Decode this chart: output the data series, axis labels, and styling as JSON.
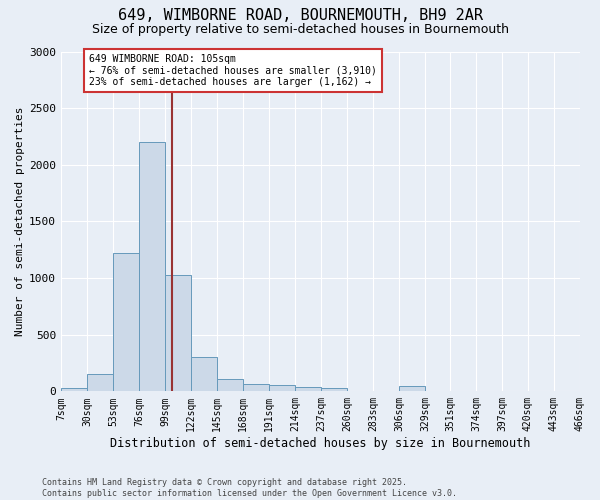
{
  "title": "649, WIMBORNE ROAD, BOURNEMOUTH, BH9 2AR",
  "subtitle": "Size of property relative to semi-detached houses in Bournemouth",
  "xlabel": "Distribution of semi-detached houses by size in Bournemouth",
  "ylabel": "Number of semi-detached properties",
  "footnote": "Contains HM Land Registry data © Crown copyright and database right 2025.\nContains public sector information licensed under the Open Government Licence v3.0.",
  "bin_edges": [
    7,
    30,
    53,
    76,
    99,
    122,
    145,
    168,
    191,
    214,
    237,
    260,
    283,
    306,
    329,
    351,
    374,
    397,
    420,
    443,
    466
  ],
  "bar_heights": [
    30,
    150,
    1220,
    2200,
    1030,
    305,
    105,
    65,
    55,
    40,
    30,
    5,
    5,
    45,
    3,
    2,
    1,
    1,
    0,
    0
  ],
  "bar_color": "#ccd9e8",
  "bar_edgecolor": "#6699bb",
  "bg_color": "#e8eef6",
  "grid_color": "#ffffff",
  "property_size": 105,
  "vline_color": "#993333",
  "annotation_text": "649 WIMBORNE ROAD: 105sqm\n← 76% of semi-detached houses are smaller (3,910)\n23% of semi-detached houses are larger (1,162) →",
  "annotation_box_facecolor": "#ffffff",
  "annotation_border_color": "#cc3333",
  "ylim": [
    0,
    3000
  ],
  "yticks": [
    0,
    500,
    1000,
    1500,
    2000,
    2500,
    3000
  ],
  "title_fontsize": 11,
  "subtitle_fontsize": 9,
  "ylabel_fontsize": 8,
  "xlabel_fontsize": 8.5,
  "tick_label_fontsize": 7,
  "annotation_fontsize": 7
}
